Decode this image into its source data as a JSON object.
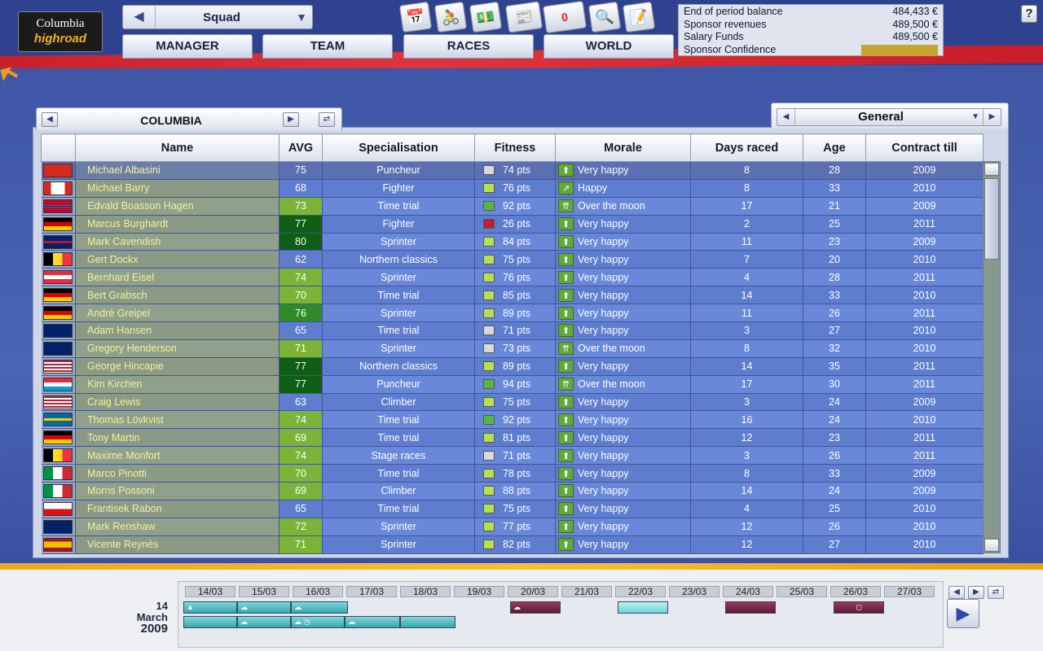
{
  "header": {
    "logo_line1": "Columbia",
    "logo_line2": "highroad",
    "squad_selector": "Squad",
    "nav": [
      "MANAGER",
      "TEAM",
      "RACES",
      "WORLD"
    ],
    "help_label": "?",
    "tools": [
      "calendar-icon",
      "rider-icon",
      "money-icon",
      "newspaper-icon",
      "mail-icon",
      "search-icon",
      "notes-icon"
    ],
    "mail_count": "0"
  },
  "finance": {
    "end_period_label": "End of period balance",
    "end_period_value": "484,433 €",
    "sponsor_rev_label": "Sponsor revenues",
    "sponsor_rev_value": "489,500 €",
    "salary_label": "Salary Funds",
    "salary_value": "489,500 €",
    "confidence_label": "Sponsor Confidence"
  },
  "team_panel": {
    "team_name": "COLUMBIA",
    "view_selector": "General"
  },
  "table": {
    "columns": [
      "",
      "Name",
      "AVG",
      "Specialisation",
      "Fitness",
      "Morale",
      "Days raced",
      "Age",
      "Contract till"
    ],
    "rows": [
      {
        "flag": "ch",
        "name": "Michael Albasini",
        "avg": "75",
        "spec": "Puncheur",
        "fit": "74 pts",
        "fitc": "#d9d9d9",
        "mor": "Very happy",
        "marr": "up",
        "days": "8",
        "age": "28",
        "contract": "2009"
      },
      {
        "flag": "ca",
        "name": "Michael Barry",
        "avg": "68",
        "spec": "Fighter",
        "fit": "76 pts",
        "fitc": "#b6e14a",
        "mor": "Happy",
        "marr": "diag",
        "days": "8",
        "age": "33",
        "contract": "2010"
      },
      {
        "flag": "no",
        "name": "Edvald Boasson Hagen",
        "avg": "73",
        "spec": "Time trial",
        "fit": "92 pts",
        "fitc": "#57b83c",
        "mor": "Over the moon",
        "marr": "double",
        "days": "17",
        "age": "21",
        "contract": "2009"
      },
      {
        "flag": "de",
        "name": "Marcus Burghardt",
        "avg": "77",
        "spec": "Fighter",
        "fit": "26 pts",
        "fitc": "#c0202a",
        "mor": "Very happy",
        "marr": "up",
        "days": "2",
        "age": "25",
        "contract": "2011"
      },
      {
        "flag": "gb",
        "name": "Mark Cavendish",
        "avg": "80",
        "spec": "Sprinter",
        "fit": "84 pts",
        "fitc": "#b6e14a",
        "mor": "Very happy",
        "marr": "up",
        "days": "11",
        "age": "23",
        "contract": "2009"
      },
      {
        "flag": "be",
        "name": "Gert Dockx",
        "avg": "62",
        "spec": "Northern classics",
        "fit": "75 pts",
        "fitc": "#b6e14a",
        "mor": "Very happy",
        "marr": "up",
        "days": "7",
        "age": "20",
        "contract": "2010"
      },
      {
        "flag": "at",
        "name": "Bernhard Eisel",
        "avg": "74",
        "spec": "Sprinter",
        "fit": "76 pts",
        "fitc": "#b6e14a",
        "mor": "Very happy",
        "marr": "up",
        "days": "4",
        "age": "28",
        "contract": "2011"
      },
      {
        "flag": "de",
        "name": "Bert Grabsch",
        "avg": "70",
        "spec": "Time trial",
        "fit": "85 pts",
        "fitc": "#b6e14a",
        "mor": "Very happy",
        "marr": "up",
        "days": "14",
        "age": "33",
        "contract": "2010"
      },
      {
        "flag": "de",
        "name": "André Greipel",
        "avg": "76",
        "spec": "Sprinter",
        "fit": "89 pts",
        "fitc": "#b6e14a",
        "mor": "Very happy",
        "marr": "up",
        "days": "11",
        "age": "26",
        "contract": "2011"
      },
      {
        "flag": "au",
        "name": "Adam Hansen",
        "avg": "65",
        "spec": "Time trial",
        "fit": "71 pts",
        "fitc": "#d9d9d9",
        "mor": "Very happy",
        "marr": "up",
        "days": "3",
        "age": "27",
        "contract": "2010"
      },
      {
        "flag": "nz",
        "name": "Gregory Henderson",
        "avg": "71",
        "spec": "Sprinter",
        "fit": "73 pts",
        "fitc": "#d9d9d9",
        "mor": "Over the moon",
        "marr": "double",
        "days": "8",
        "age": "32",
        "contract": "2010"
      },
      {
        "flag": "us",
        "name": "George Hincapie",
        "avg": "77",
        "spec": "Northern classics",
        "fit": "89 pts",
        "fitc": "#b6e14a",
        "mor": "Very happy",
        "marr": "up",
        "days": "14",
        "age": "35",
        "contract": "2011"
      },
      {
        "flag": "lu",
        "name": "Kim Kirchen",
        "avg": "77",
        "spec": "Puncheur",
        "fit": "94 pts",
        "fitc": "#57b83c",
        "mor": "Over the moon",
        "marr": "double",
        "days": "17",
        "age": "30",
        "contract": "2011"
      },
      {
        "flag": "us",
        "name": "Craig Lewis",
        "avg": "63",
        "spec": "Climber",
        "fit": "75 pts",
        "fitc": "#b6e14a",
        "mor": "Very happy",
        "marr": "up",
        "days": "3",
        "age": "24",
        "contract": "2009"
      },
      {
        "flag": "se",
        "name": "Thomas Lövkvist",
        "avg": "74",
        "spec": "Time trial",
        "fit": "92 pts",
        "fitc": "#57b83c",
        "mor": "Very happy",
        "marr": "up",
        "days": "16",
        "age": "24",
        "contract": "2010"
      },
      {
        "flag": "de",
        "name": "Tony Martin",
        "avg": "69",
        "spec": "Time trial",
        "fit": "81 pts",
        "fitc": "#b6e14a",
        "mor": "Very happy",
        "marr": "up",
        "days": "12",
        "age": "23",
        "contract": "2011"
      },
      {
        "flag": "be",
        "name": "Maxime Monfort",
        "avg": "74",
        "spec": "Stage races",
        "fit": "71 pts",
        "fitc": "#d9d9d9",
        "mor": "Very happy",
        "marr": "up",
        "days": "3",
        "age": "26",
        "contract": "2011"
      },
      {
        "flag": "it",
        "name": "Marco Pinotti",
        "avg": "70",
        "spec": "Time trial",
        "fit": "78 pts",
        "fitc": "#b6e14a",
        "mor": "Very happy",
        "marr": "up",
        "days": "8",
        "age": "33",
        "contract": "2009"
      },
      {
        "flag": "it",
        "name": "Morris Possoni",
        "avg": "69",
        "spec": "Climber",
        "fit": "88 pts",
        "fitc": "#b6e14a",
        "mor": "Very happy",
        "marr": "up",
        "days": "14",
        "age": "24",
        "contract": "2009"
      },
      {
        "flag": "cz",
        "name": "Frantisek Rabon",
        "avg": "65",
        "spec": "Time trial",
        "fit": "75 pts",
        "fitc": "#b6e14a",
        "mor": "Very happy",
        "marr": "up",
        "days": "4",
        "age": "25",
        "contract": "2010"
      },
      {
        "flag": "au",
        "name": "Mark Renshaw",
        "avg": "72",
        "spec": "Sprinter",
        "fit": "77 pts",
        "fitc": "#b6e14a",
        "mor": "Very happy",
        "marr": "up",
        "days": "12",
        "age": "26",
        "contract": "2010"
      },
      {
        "flag": "es",
        "name": "Vicente Reynès",
        "avg": "71",
        "spec": "Sprinter",
        "fit": "82 pts",
        "fitc": "#b6e14a",
        "mor": "Very happy",
        "marr": "up",
        "days": "12",
        "age": "27",
        "contract": "2010"
      }
    ]
  },
  "calendar": {
    "current_day": "14",
    "current_month": "March",
    "current_year": "2009",
    "days": [
      "14/03",
      "15/03",
      "16/03",
      "17/03",
      "18/03",
      "19/03",
      "20/03",
      "21/03",
      "22/03",
      "23/03",
      "24/03",
      "25/03",
      "26/03",
      "27/03"
    ]
  }
}
